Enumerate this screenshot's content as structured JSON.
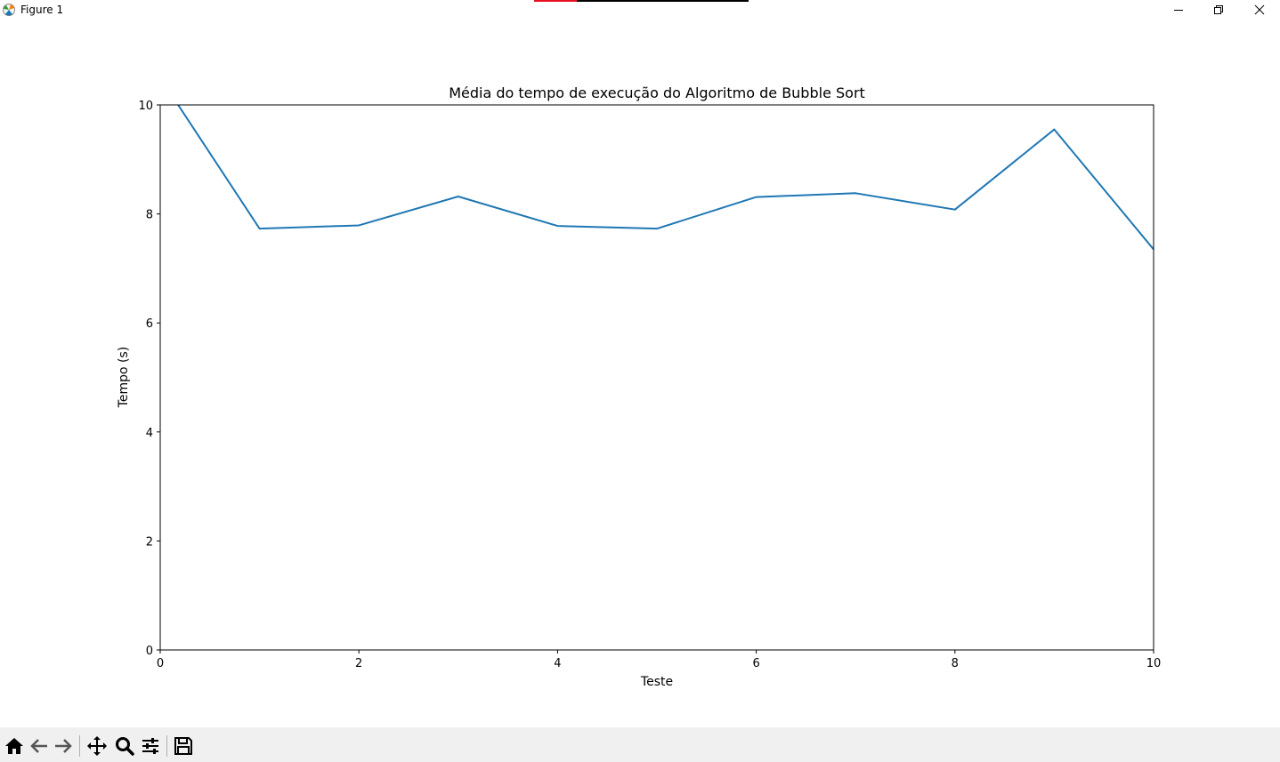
{
  "window": {
    "title": "Figure 1",
    "controls": [
      "minimize-icon",
      "maximize-icon",
      "close-icon"
    ]
  },
  "toolbar": {
    "buttons": [
      {
        "name": "home",
        "icon": "home-icon"
      },
      {
        "name": "back",
        "icon": "arrow-left-icon"
      },
      {
        "name": "forward",
        "icon": "arrow-right-icon"
      },
      {
        "name": "pan",
        "icon": "move-icon"
      },
      {
        "name": "zoom",
        "icon": "magnifier-icon"
      },
      {
        "name": "configure-subplots",
        "icon": "sliders-icon"
      },
      {
        "name": "save",
        "icon": "floppy-disk-icon"
      }
    ]
  },
  "chart_data": {
    "type": "line",
    "title": "Média do tempo de execução do Algoritmo de Bubble Sort",
    "xlabel": "Teste",
    "ylabel": "Tempo (s)",
    "xlim": [
      0,
      10
    ],
    "ylim": [
      0,
      10
    ],
    "xticks": [
      "0",
      "2",
      "4",
      "6",
      "8",
      "10"
    ],
    "yticks": [
      "0",
      "2",
      "4",
      "6",
      "8",
      "10"
    ],
    "grid": false,
    "series": [
      {
        "color": "#1f77b4",
        "x": [
          0,
          1,
          2,
          3,
          4,
          5,
          6,
          7,
          8,
          9,
          10
        ],
        "y": [
          10.5,
          7.73,
          7.79,
          8.32,
          7.78,
          7.73,
          8.31,
          8.38,
          8.08,
          9.55,
          7.35
        ]
      }
    ]
  }
}
